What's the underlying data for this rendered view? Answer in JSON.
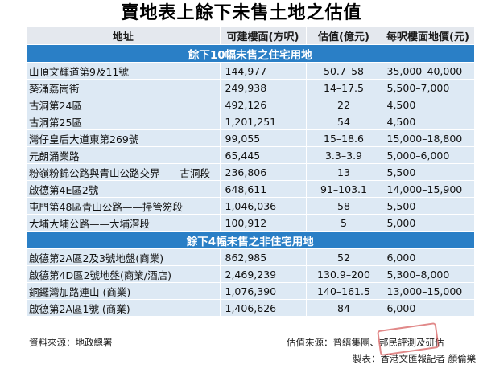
{
  "title": "賣地表上餘下未售土地之估值",
  "headers": [
    "地址",
    "可建樓面(方呎)",
    "估值(億元)",
    "每呎樓面地價(元)"
  ],
  "sections": [
    {
      "label": "餘下10幅未售之住宅用地",
      "rows": [
        [
          "山頂文輝道第9及11號",
          "144,977",
          "50.7–58",
          "35,000–40,000"
        ],
        [
          "葵涌荔崗街",
          "249,938",
          "14–17.5",
          "5,500–7,000"
        ],
        [
          "古洞第24區",
          "492,126",
          "22",
          "4,500"
        ],
        [
          "古洞第25區",
          "1,201,251",
          "54",
          "4,500"
        ],
        [
          "灣仔皇后大道東第269號",
          "99,055",
          "15–18.6",
          "15,000–18,800"
        ],
        [
          "元朗涌業路",
          "65,445",
          "3.3–3.9",
          "5,000–6,000"
        ],
        [
          "粉嶺粉錦公路與青山公路交界——古洞段",
          "236,806",
          "13",
          "5,500"
        ],
        [
          "啟德第4E區2號",
          "648,611",
          "91–103.1",
          "14,000–15,900"
        ],
        [
          "屯門第48區青山公路——掃管笏段",
          "1,046,036",
          "58",
          "5,500"
        ],
        [
          "大埔大埔公路——大埔滘段",
          "100,912",
          "5",
          "5,000"
        ]
      ]
    },
    {
      "label": "餘下4幅未售之非住宅用地",
      "rows": [
        [
          "啟德第2A區2及3號地盤(商業)",
          "862,985",
          "52",
          "6,000"
        ],
        [
          "啟德第4D區2號地盤(商業/酒店)",
          "2,469,239",
          "130.9–200",
          "5,300–8,000"
        ],
        [
          "銅鑼灣加路連山 (商業)",
          "1,076,390",
          "140–161.5",
          "13,000–15,000"
        ],
        [
          "啟德第2A區1號 (商業)",
          "1,406,626",
          "84",
          "6,000"
        ]
      ]
    }
  ],
  "footer": {
    "source_left": "資料來源：地政總署",
    "source_right": "估值來源：普縉集團、邦民評測及研估",
    "credit": "製表：香港文匯報記者 顏倫樂"
  },
  "stamp_text": "文匯網"
}
